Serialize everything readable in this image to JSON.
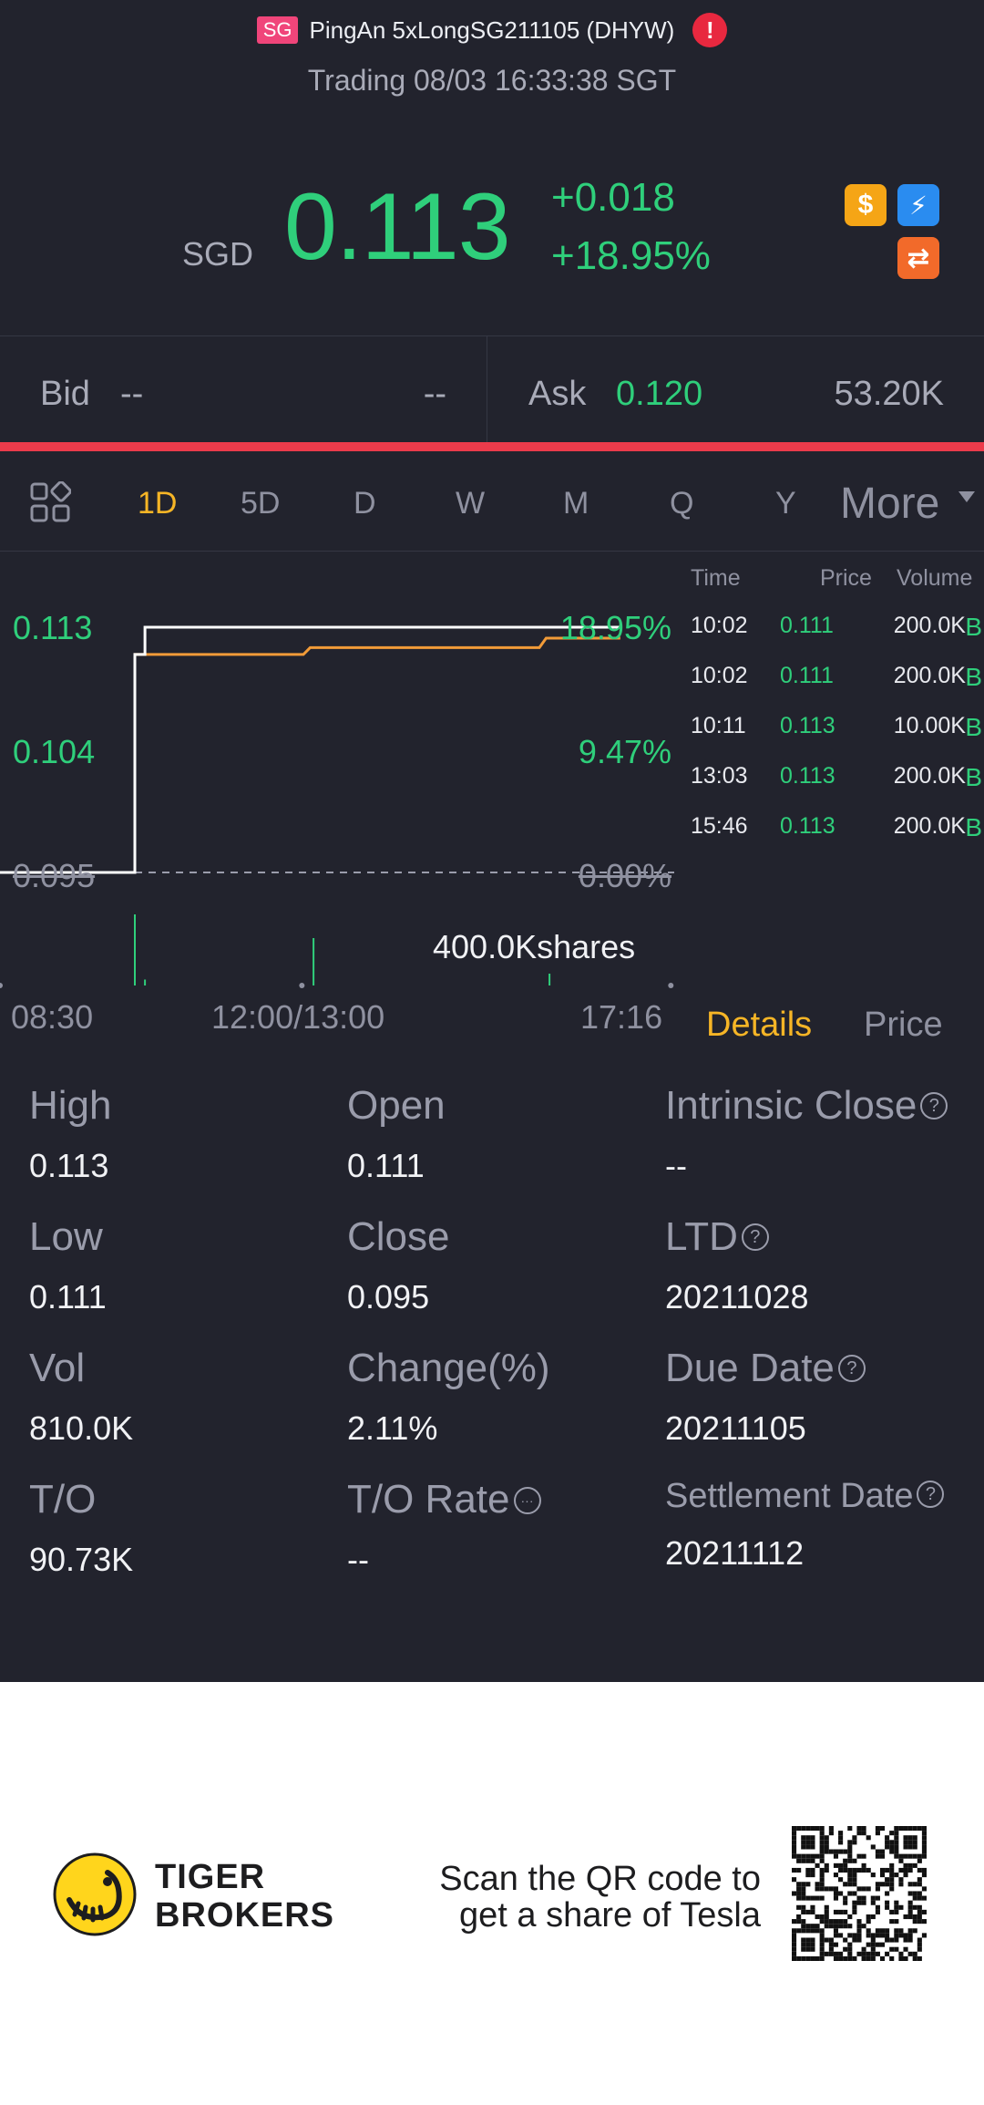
{
  "header": {
    "market_badge": "SG",
    "title": "PingAn 5xLongSG211105 (DHYW)",
    "alert_symbol": "!",
    "status": "Trading 08/03 16:33:38 SGT"
  },
  "quote": {
    "currency": "SGD",
    "price": "0.113",
    "change": "+0.018",
    "change_pct": "+18.95%",
    "icons": [
      "dollar-icon",
      "flash-icon",
      "swap-icon"
    ],
    "icon_glyphs": {
      "dollar": "$",
      "flash": "⚡",
      "swap": "⇄"
    }
  },
  "bid_ask": {
    "bid_label": "Bid",
    "bid_price": "--",
    "bid_size": "--",
    "ask_label": "Ask",
    "ask_price": "0.120",
    "ask_size": "53.20K"
  },
  "tabs": {
    "items": [
      "1D",
      "5D",
      "D",
      "W",
      "M",
      "Q",
      "Y"
    ],
    "active": "1D",
    "more": "More"
  },
  "chart_data": {
    "type": "line",
    "y_ticks": [
      "0.113",
      "0.104",
      "0.095"
    ],
    "y_pct_ticks": [
      "18.95%",
      "9.47%",
      "0.00%"
    ],
    "x_ticks": [
      "08:30",
      "12:00/13:00",
      "17:16"
    ],
    "prev_close": 0.095,
    "ylim": [
      0.095,
      0.113
    ],
    "series": [
      {
        "name": "",
        "color": "#ffffff",
        "points": [
          [
            0.0,
            0.095
          ],
          [
            0.2,
            0.095
          ],
          [
            0.2,
            0.111
          ],
          [
            0.215,
            0.111
          ],
          [
            0.215,
            0.113
          ],
          [
            0.92,
            0.113
          ]
        ]
      },
      {
        "name": "",
        "color": "#f29b38",
        "points": [
          [
            0.2,
            0.095
          ],
          [
            0.2,
            0.111
          ],
          [
            0.45,
            0.111
          ],
          [
            0.46,
            0.1115
          ],
          [
            0.8,
            0.1115
          ],
          [
            0.81,
            0.1122
          ],
          [
            0.92,
            0.1122
          ]
        ]
      }
    ],
    "volume_bars": [
      {
        "x": 0.2,
        "value": 0.6
      },
      {
        "x": 0.215,
        "value": 0.05
      },
      {
        "x": 0.465,
        "value": 0.4
      },
      {
        "x": 0.815,
        "value": 0.1
      }
    ],
    "volume_label": "400.0Kshares"
  },
  "trades": {
    "headers": {
      "time": "Time",
      "price": "Price",
      "volume": "Volume"
    },
    "rows": [
      {
        "time": "10:02",
        "price": "0.111",
        "volume": "200.0K",
        "side": "B"
      },
      {
        "time": "10:02",
        "price": "0.111",
        "volume": "200.0K",
        "side": "B"
      },
      {
        "time": "10:11",
        "price": "0.113",
        "volume": "10.00K",
        "side": "B"
      },
      {
        "time": "13:03",
        "price": "0.113",
        "volume": "200.0K",
        "side": "B"
      },
      {
        "time": "15:46",
        "price": "0.113",
        "volume": "200.0K",
        "side": "B"
      }
    ]
  },
  "detail_tabs": {
    "details": "Details",
    "price": "Price"
  },
  "stats": {
    "high_label": "High",
    "high": "0.113",
    "open_label": "Open",
    "open": "0.111",
    "intrinsic_label": "Intrinsic Close",
    "intrinsic": "--",
    "low_label": "Low",
    "low": "0.111",
    "close_label": "Close",
    "close": "0.095",
    "ltd_label": "LTD",
    "ltd": "20211028",
    "vol_label": "Vol",
    "vol": "810.0K",
    "change_label": "Change(%)",
    "change": "2.11%",
    "due_label": "Due Date",
    "due": "20211105",
    "to_label": "T/O",
    "to": "90.73K",
    "to_rate_label": "T/O Rate",
    "to_rate": "--",
    "settle_label": "Settlement Date",
    "settle": "20211112",
    "help_glyph": "?",
    "more_glyph": "···"
  },
  "footer": {
    "brand_line1": "TIGER",
    "brand_line2": "BROKERS",
    "promo_line1": "Scan the QR code to",
    "promo_line2": "get a share of Tesla"
  }
}
